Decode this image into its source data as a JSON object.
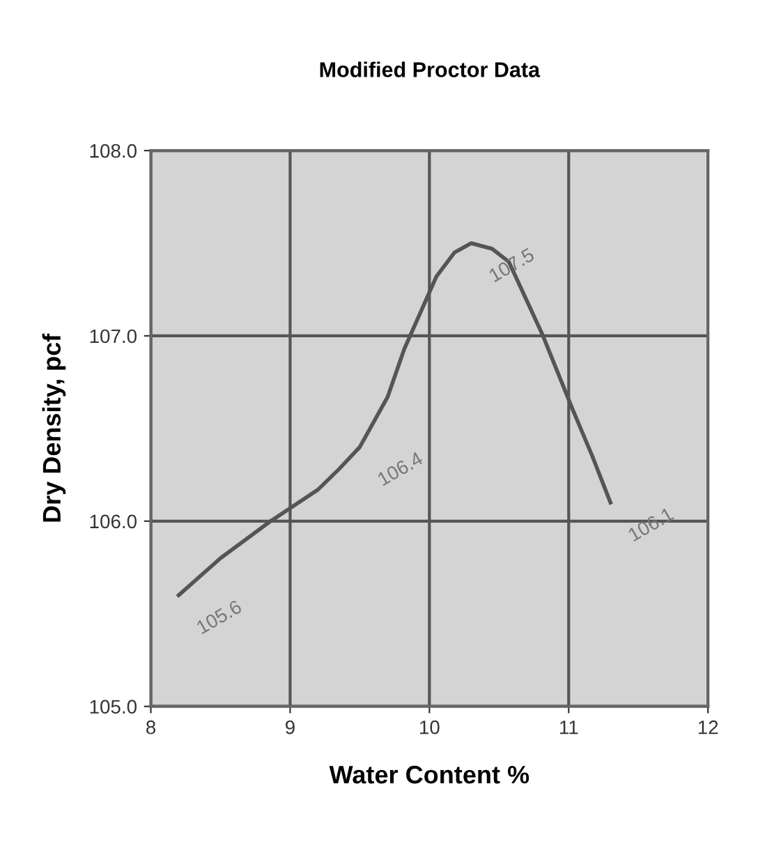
{
  "chart_data": {
    "type": "line",
    "title": "Modified Proctor Data",
    "xlabel": "Water Content %",
    "ylabel": "Dry Density, pcf",
    "x": [
      8.2,
      8.5,
      8.86,
      9.0,
      9.2,
      9.35,
      9.5,
      9.7,
      9.82,
      10.05,
      10.18,
      10.3,
      10.45,
      10.57,
      10.81,
      11.03,
      11.17,
      11.3
    ],
    "series": [
      {
        "color": "#555555",
        "values": [
          105.6,
          105.8,
          106.0,
          106.07,
          106.17,
          106.28,
          106.4,
          106.67,
          106.93,
          107.32,
          107.45,
          107.5,
          107.47,
          107.4,
          107.01,
          106.6,
          106.35,
          106.1
        ],
        "value_labels": [
          "105.6",
          null,
          null,
          null,
          null,
          null,
          "106.4",
          null,
          null,
          null,
          null,
          "107.5",
          null,
          null,
          null,
          null,
          null,
          "106.1"
        ]
      }
    ],
    "xlim": [
      8,
      12
    ],
    "xticks": [
      8,
      9,
      10,
      11,
      12
    ],
    "ylim": [
      105.0,
      108.0
    ],
    "yticks": [
      {
        "value": 105,
        "label": "105.0"
      },
      {
        "value": 106,
        "label": "106.0"
      },
      {
        "value": 107,
        "label": "107.0"
      },
      {
        "value": 108,
        "label": "108.0"
      }
    ],
    "grid": true,
    "marker": "none",
    "line_style": "solid",
    "legend": false
  }
}
